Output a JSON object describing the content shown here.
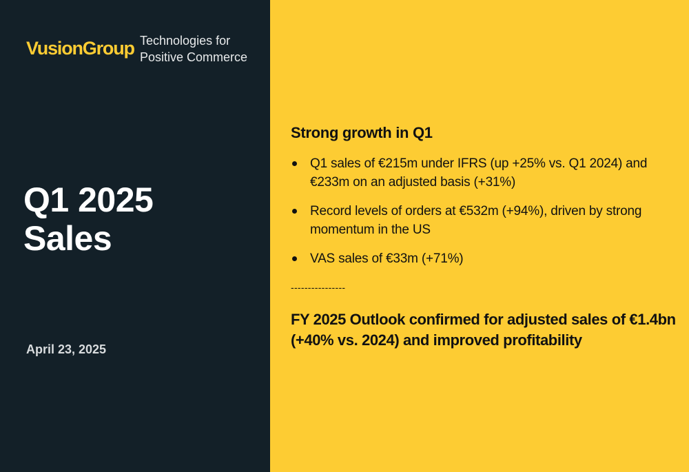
{
  "brand": {
    "logo": "VusionGroup",
    "tagline_line1": "Technologies for",
    "tagline_line2": "Positive Commerce",
    "accent_color": "#FDCC33",
    "dark_color": "#132028"
  },
  "cover": {
    "title_line1": "Q1 2025",
    "title_line2": "Sales",
    "date": "April 23, 2025"
  },
  "highlights": {
    "heading": "Strong growth in Q1",
    "bullets": [
      "Q1 sales of €215m under IFRS (up +25% vs. Q1 2024) and €233m on an adjusted basis (+31%)",
      "Record levels of orders at €532m (+94%), driven by strong momentum in the US",
      "VAS sales of €33m (+71%)"
    ],
    "divider": "----------------",
    "outlook": "FY 2025 Outlook confirmed for adjusted sales of €1.4bn (+40% vs. 2024) and improved profitability"
  }
}
